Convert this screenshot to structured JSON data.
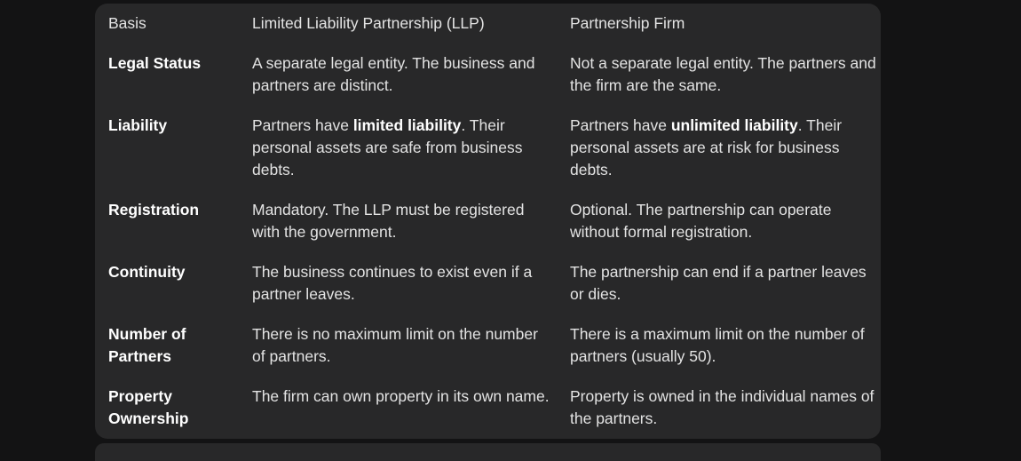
{
  "table": {
    "headers": [
      "Basis",
      "Limited Liability Partnership (LLP)",
      "Partnership Firm"
    ],
    "rows": [
      {
        "basis": "Legal Status",
        "llp": [
          "A separate legal entity. The business and partners are distinct."
        ],
        "firm": [
          "Not a separate legal entity. The partners and the firm are the same."
        ]
      },
      {
        "basis": "Liability",
        "llp": [
          "Partners have ",
          "limited liability",
          ". Their personal assets are safe from business debts."
        ],
        "firm": [
          "Partners have ",
          "unlimited liability",
          ". Their personal assets are at risk for business debts."
        ]
      },
      {
        "basis": "Registration",
        "llp": [
          "Mandatory. The LLP must be registered with the government."
        ],
        "firm": [
          "Optional. The partnership can operate without formal registration."
        ]
      },
      {
        "basis": "Continuity",
        "llp": [
          "The business continues to exist even if a partner leaves."
        ],
        "firm": [
          "The partnership can end if a partner leaves or dies."
        ]
      },
      {
        "basis": "Number of Partners",
        "llp": [
          "There is no maximum limit on the number of partners."
        ],
        "firm": [
          "There is a maximum limit on the number of partners (usually 50)."
        ]
      },
      {
        "basis": "Property Ownership",
        "llp": [
          "The firm can own property in its own name."
        ],
        "firm": [
          "Property is owned in the individual names of the partners."
        ]
      }
    ]
  }
}
